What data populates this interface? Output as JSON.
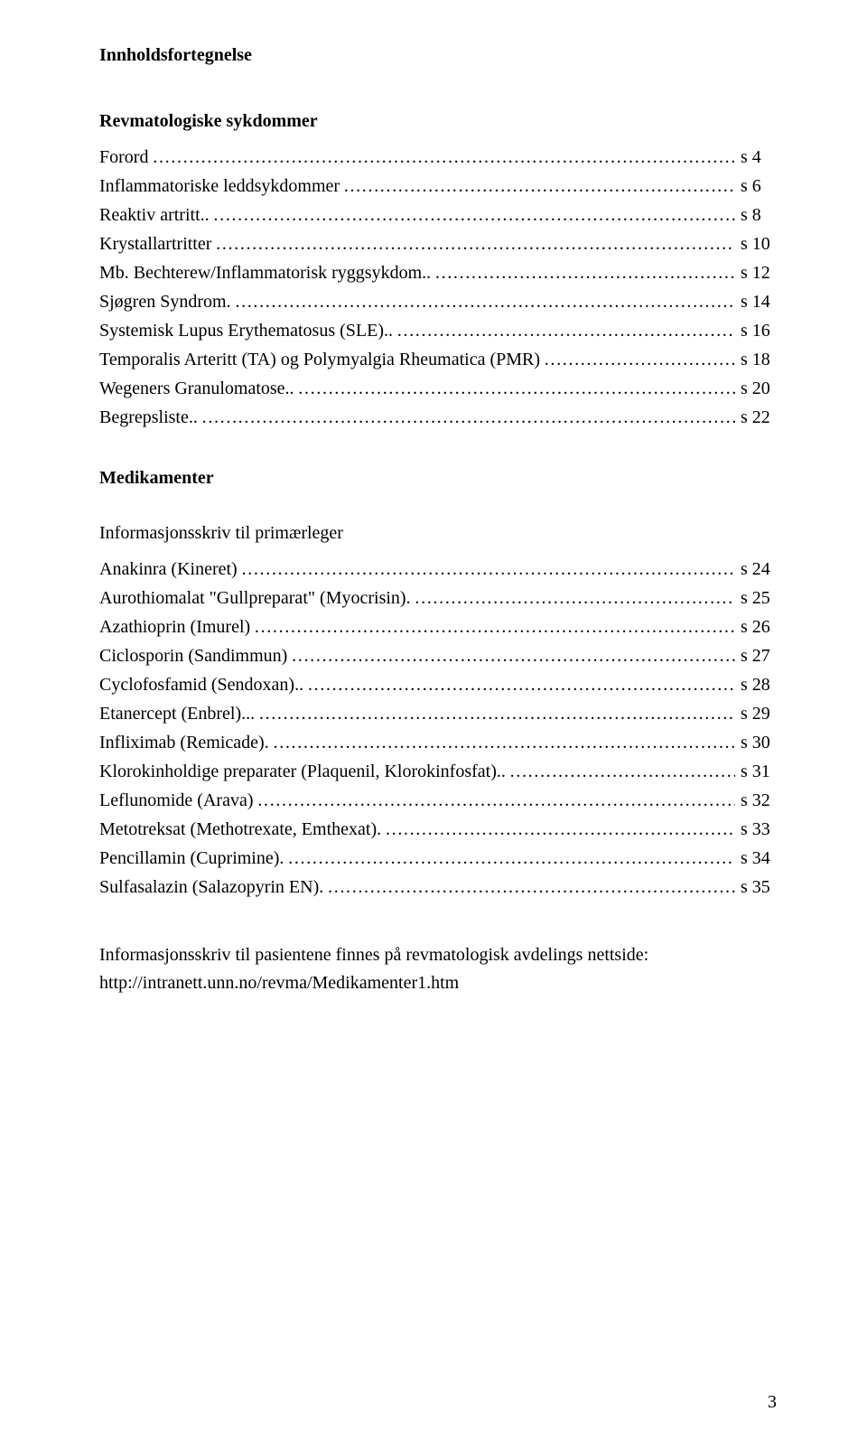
{
  "title": "Innholdsfortegnelse",
  "sections": {
    "diseases": {
      "heading": "Revmatologiske sykdommer",
      "entries": [
        {
          "label": "Forord",
          "page": "s 4"
        },
        {
          "label": "Inflammatoriske leddsykdommer",
          "page": "s 6"
        },
        {
          "label": "Reaktiv artritt..",
          "page": "s 8"
        },
        {
          "label": "Krystallartritter",
          "page": "s 10"
        },
        {
          "label": "Mb. Bechterew/Inflammatorisk ryggsykdom..",
          "page": "s 12"
        },
        {
          "label": "Sjøgren Syndrom.",
          "page": "s 14"
        },
        {
          "label": "Systemisk Lupus Erythematosus (SLE)..",
          "page": "s 16"
        },
        {
          "label": "Temporalis Arteritt (TA) og Polymyalgia Rheumatica (PMR)",
          "page": "s 18"
        },
        {
          "label": "Wegeners Granulomatose..",
          "page": "s 20"
        },
        {
          "label": "Begrepsliste..",
          "page": "s 22"
        }
      ]
    },
    "medications": {
      "heading": "Medikamenter",
      "subheading": "Informasjonsskriv til primærleger",
      "entries": [
        {
          "label": "Anakinra (Kineret)",
          "page": "s 24"
        },
        {
          "label": "Aurothiomalat \"Gullpreparat\" (Myocrisin).",
          "page": "s 25"
        },
        {
          "label": "Azathioprin (Imurel)",
          "page": "s 26"
        },
        {
          "label": "Ciclosporin (Sandimmun)",
          "page": "s 27"
        },
        {
          "label": "Cyclofosfamid (Sendoxan)..",
          "page": "s 28"
        },
        {
          "label": "Etanercept (Enbrel)...",
          "page": "s 29"
        },
        {
          "label": "Infliximab (Remicade).",
          "page": "s 30"
        },
        {
          "label": "Klorokinholdige preparater (Plaquenil, Klorokinfosfat)..",
          "page": "s 31"
        },
        {
          "label": "Leflunomide (Arava)",
          "page": "s 32"
        },
        {
          "label": "Metotreksat (Methotrexate, Emthexat).",
          "page": "s 33"
        },
        {
          "label": "Pencillamin (Cuprimine).",
          "page": "s 34"
        },
        {
          "label": "Sulfasalazin (Salazopyrin EN).",
          "page": "s 35"
        }
      ]
    }
  },
  "note": {
    "line1": "Informasjonsskriv til pasientene finnes på revmatologisk avdelings nettside:",
    "line2": "http://intranett.unn.no/revma/Medikamenter1.htm"
  },
  "page_number": "3"
}
